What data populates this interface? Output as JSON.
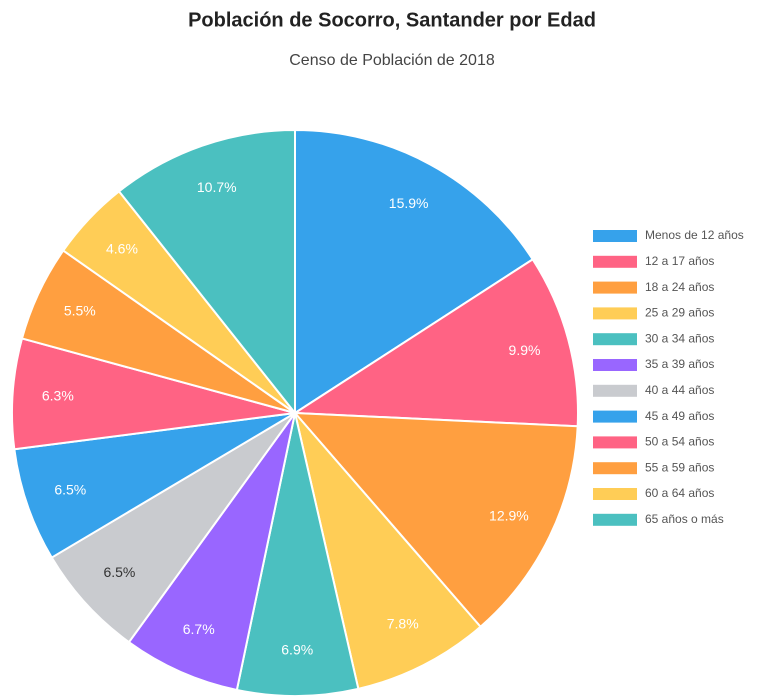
{
  "chart_data": {
    "type": "pie",
    "title": "Población de Socorro, Santander por Edad",
    "subtitle": "Censo de Población de 2018",
    "categories": [
      "Menos de 12 años",
      "12 a 17 años",
      "18 a 24 años",
      "25 a 29 años",
      "30 a 34 años",
      "35 a 39 años",
      "40 a 44 años",
      "45 a 49 años",
      "50 a 54 años",
      "55 a 59 años",
      "60 a 64 años",
      "65 años o más"
    ],
    "values": [
      15.9,
      9.9,
      12.9,
      7.8,
      6.9,
      6.7,
      6.5,
      6.5,
      6.3,
      5.5,
      4.6,
      10.7
    ],
    "value_labels": [
      "15.9%",
      "9.9%",
      "12.9%",
      "7.8%",
      "6.9%",
      "6.7%",
      "6.5%",
      "6.5%",
      "6.3%",
      "5.5%",
      "4.6%",
      "10.7%"
    ],
    "colors": [
      "#36a2eb",
      "#ff6384",
      "#ff9f40",
      "#ffcd56",
      "#4bc0c0",
      "#9966ff",
      "#c9cbcf",
      "#36a2eb",
      "#ff6384",
      "#ff9f40",
      "#ffcd56",
      "#4bc0c0"
    ],
    "legend": "right"
  }
}
